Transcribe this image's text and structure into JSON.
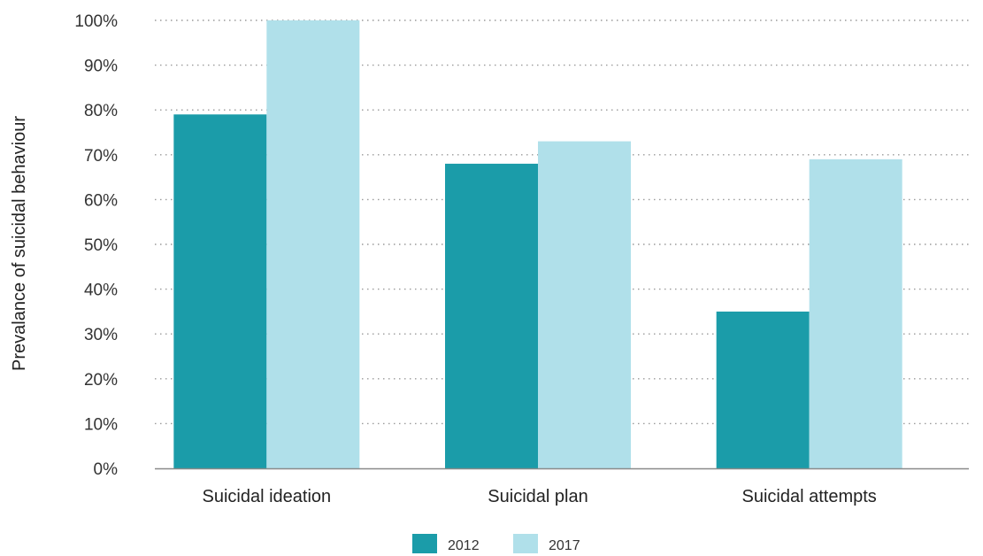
{
  "chart_data": {
    "type": "bar",
    "title": "",
    "xlabel": "",
    "ylabel": "Prevalance of suicidal behaviour",
    "categories": [
      "Suicidal ideation",
      "Suicidal plan",
      "Suicidal attempts"
    ],
    "series": [
      {
        "name": "2012",
        "color": "#1b9ca9",
        "values": [
          79,
          68,
          35
        ]
      },
      {
        "name": "2017",
        "color": "#b0e0ea",
        "values": [
          100,
          73,
          69
        ]
      }
    ],
    "ylim": [
      0,
      100
    ],
    "yticks": [
      0,
      10,
      20,
      30,
      40,
      50,
      60,
      70,
      80,
      90,
      100
    ],
    "ytick_labels": [
      "0%",
      "10%",
      "20%",
      "30%",
      "40%",
      "50%",
      "60%",
      "70%",
      "80%",
      "90%",
      "100%"
    ],
    "grid": true,
    "legend_position": "bottom-center"
  }
}
